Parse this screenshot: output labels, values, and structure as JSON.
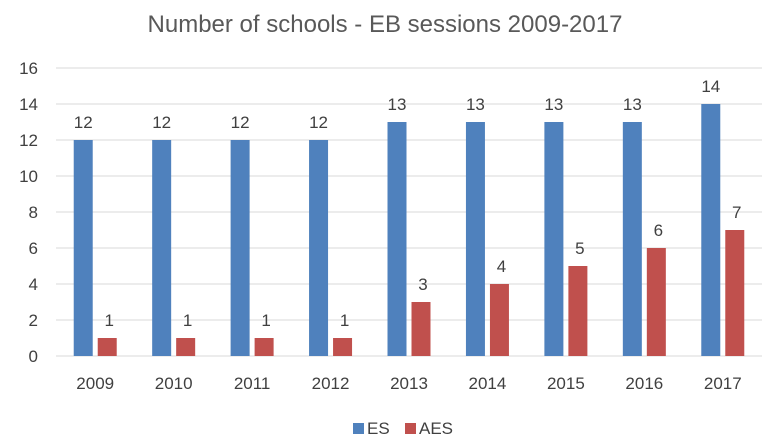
{
  "chart_data": {
    "type": "bar",
    "title": "Number of schools - EB sessions 2009-2017",
    "xlabel": "",
    "ylabel": "",
    "categories": [
      "2009",
      "2010",
      "2011",
      "2012",
      "2013",
      "2014",
      "2015",
      "2016",
      "2017"
    ],
    "series": [
      {
        "name": "ES",
        "values": [
          12,
          12,
          12,
          12,
          13,
          13,
          13,
          13,
          14
        ],
        "color": "#4f81bd"
      },
      {
        "name": "AES",
        "values": [
          1,
          1,
          1,
          1,
          3,
          4,
          5,
          6,
          7
        ],
        "color": "#c0504d"
      }
    ],
    "ylim": [
      0,
      16
    ],
    "yticks": [
      "0",
      "2",
      "4",
      "6",
      "8",
      "10",
      "12",
      "14",
      "16"
    ],
    "grid": true,
    "legend_position": "bottom",
    "data_labels": true
  }
}
